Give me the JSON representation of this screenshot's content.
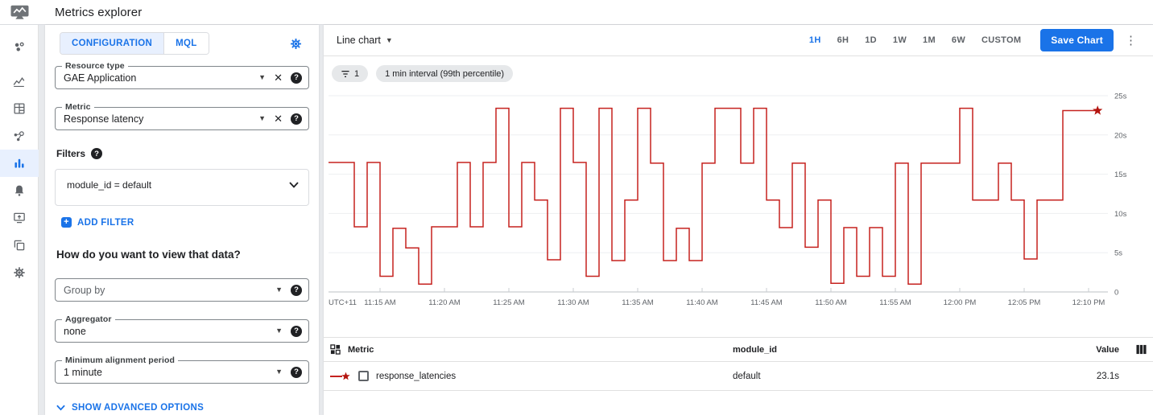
{
  "app": {
    "title": "Metrics explorer"
  },
  "config": {
    "tabs": {
      "configuration": "CONFIGURATION",
      "mql": "MQL"
    },
    "resource_type": {
      "label": "Resource type",
      "value": "GAE Application"
    },
    "metric": {
      "label": "Metric",
      "value": "Response latency"
    },
    "filters_label": "Filters",
    "filter_value": "module_id = default",
    "add_filter_label": "ADD FILTER",
    "view_heading": "How do you want to view that data?",
    "group_by": {
      "placeholder": "Group by"
    },
    "aggregator": {
      "label": "Aggregator",
      "value": "none"
    },
    "alignment": {
      "label": "Minimum alignment period",
      "value": "1 minute"
    },
    "advanced_label": "SHOW ADVANCED OPTIONS"
  },
  "chart_header": {
    "chart_type": "Line chart",
    "ranges": [
      "1H",
      "6H",
      "1D",
      "1W",
      "1M",
      "6W",
      "CUSTOM"
    ],
    "active_range": "1H",
    "save_label": "Save Chart"
  },
  "chips": {
    "filter_count": "1",
    "interval": "1 min interval (99th percentile)"
  },
  "chart_data": {
    "type": "line",
    "style": "step",
    "unit": "seconds",
    "timezone_label": "UTC+11",
    "start_time": "11:11 AM",
    "interval_minutes": 1,
    "ylim": [
      0,
      25
    ],
    "grid": true,
    "line_color": "#c5221f",
    "end_marker": "star",
    "end_marker_color": "#b3150f",
    "y_tick_values": [
      25,
      20,
      15,
      10,
      5,
      0
    ],
    "y_ticks": [
      "25s",
      "20s",
      "15s",
      "10s",
      "5s",
      "0"
    ],
    "x_tick_labels": [
      "11:15 AM",
      "11:20 AM",
      "11:25 AM",
      "11:30 AM",
      "11:35 AM",
      "11:40 AM",
      "11:45 AM",
      "11:50 AM",
      "11:55 AM",
      "12:00 PM",
      "12:05 PM",
      "12:10 PM"
    ],
    "x_tick_minutes": [
      4,
      9,
      14,
      19,
      24,
      29,
      34,
      39,
      44,
      49,
      54,
      59
    ],
    "series_name": "response_latencies",
    "values": [
      16.5,
      16.5,
      8.3,
      16.5,
      2.0,
      8.1,
      5.6,
      1.0,
      8.3,
      8.3,
      16.5,
      8.3,
      16.5,
      23.4,
      8.3,
      16.5,
      11.7,
      4.1,
      23.4,
      16.5,
      2.0,
      23.4,
      4.0,
      11.7,
      23.4,
      16.4,
      4.0,
      8.1,
      4.0,
      16.4,
      23.4,
      23.4,
      16.4,
      23.4,
      11.7,
      8.2,
      16.4,
      5.7,
      11.7,
      1.1,
      8.2,
      2.0,
      8.2,
      2.0,
      16.4,
      1.0,
      16.4,
      16.4,
      16.4,
      23.4,
      11.7,
      11.7,
      16.4,
      11.7,
      4.2,
      11.7,
      11.7,
      23.1,
      23.1,
      23.1
    ]
  },
  "table": {
    "columns": {
      "metric": "Metric",
      "module_id": "module_id",
      "value": "Value"
    },
    "row": {
      "metric": "response_latencies",
      "module_id": "default",
      "value": "23.1s"
    }
  },
  "icons": {
    "topbar_logo": "monitoring-monitor-chart",
    "config_gear": "gear",
    "help": "question-circle",
    "clear": "x",
    "dropdown": "caret-down",
    "filter_chip": "filter-list",
    "table_toggle": "grid-2x2",
    "column_selector": "columns",
    "row_legend": "red-line-with-star"
  },
  "colors": {
    "accent": "#1a73e8",
    "line": "#c5221f",
    "tab_active_bg": "#e8f0fe"
  }
}
